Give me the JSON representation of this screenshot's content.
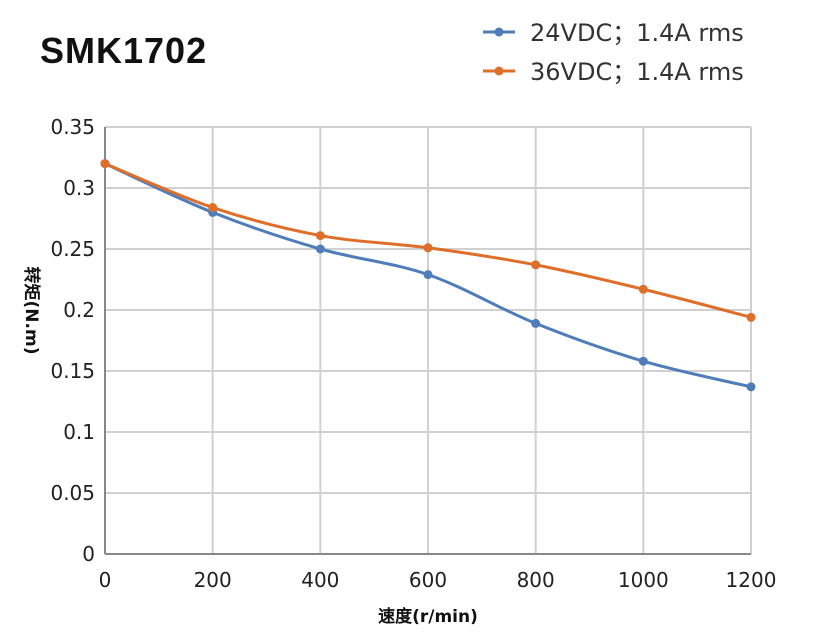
{
  "chart_data": {
    "type": "line",
    "title": "SMK1702",
    "xlabel": "速度(r/min)",
    "ylabel": "转矩(N.m)",
    "x": [
      0,
      200,
      400,
      600,
      800,
      1000,
      1200
    ],
    "xlim": [
      0,
      1200
    ],
    "ylim": [
      0,
      0.35
    ],
    "xticks": [
      "0",
      "200",
      "400",
      "600",
      "800",
      "1000",
      "1200"
    ],
    "yticks": [
      "0",
      "0.05",
      "0.1",
      "0.15",
      "0.2",
      "0.25",
      "0.3",
      "0.35"
    ],
    "grid": true,
    "legend_position": "top-right",
    "series": [
      {
        "name": "24VDC；1.4A rms",
        "color": "#4e7db9",
        "values": [
          0.32,
          0.28,
          0.25,
          0.229,
          0.189,
          0.158,
          0.137
        ]
      },
      {
        "name": "36VDC；1.4A rms",
        "color": "#e06e2b",
        "values": [
          0.32,
          0.284,
          0.261,
          0.251,
          0.237,
          0.217,
          0.194
        ]
      }
    ]
  }
}
